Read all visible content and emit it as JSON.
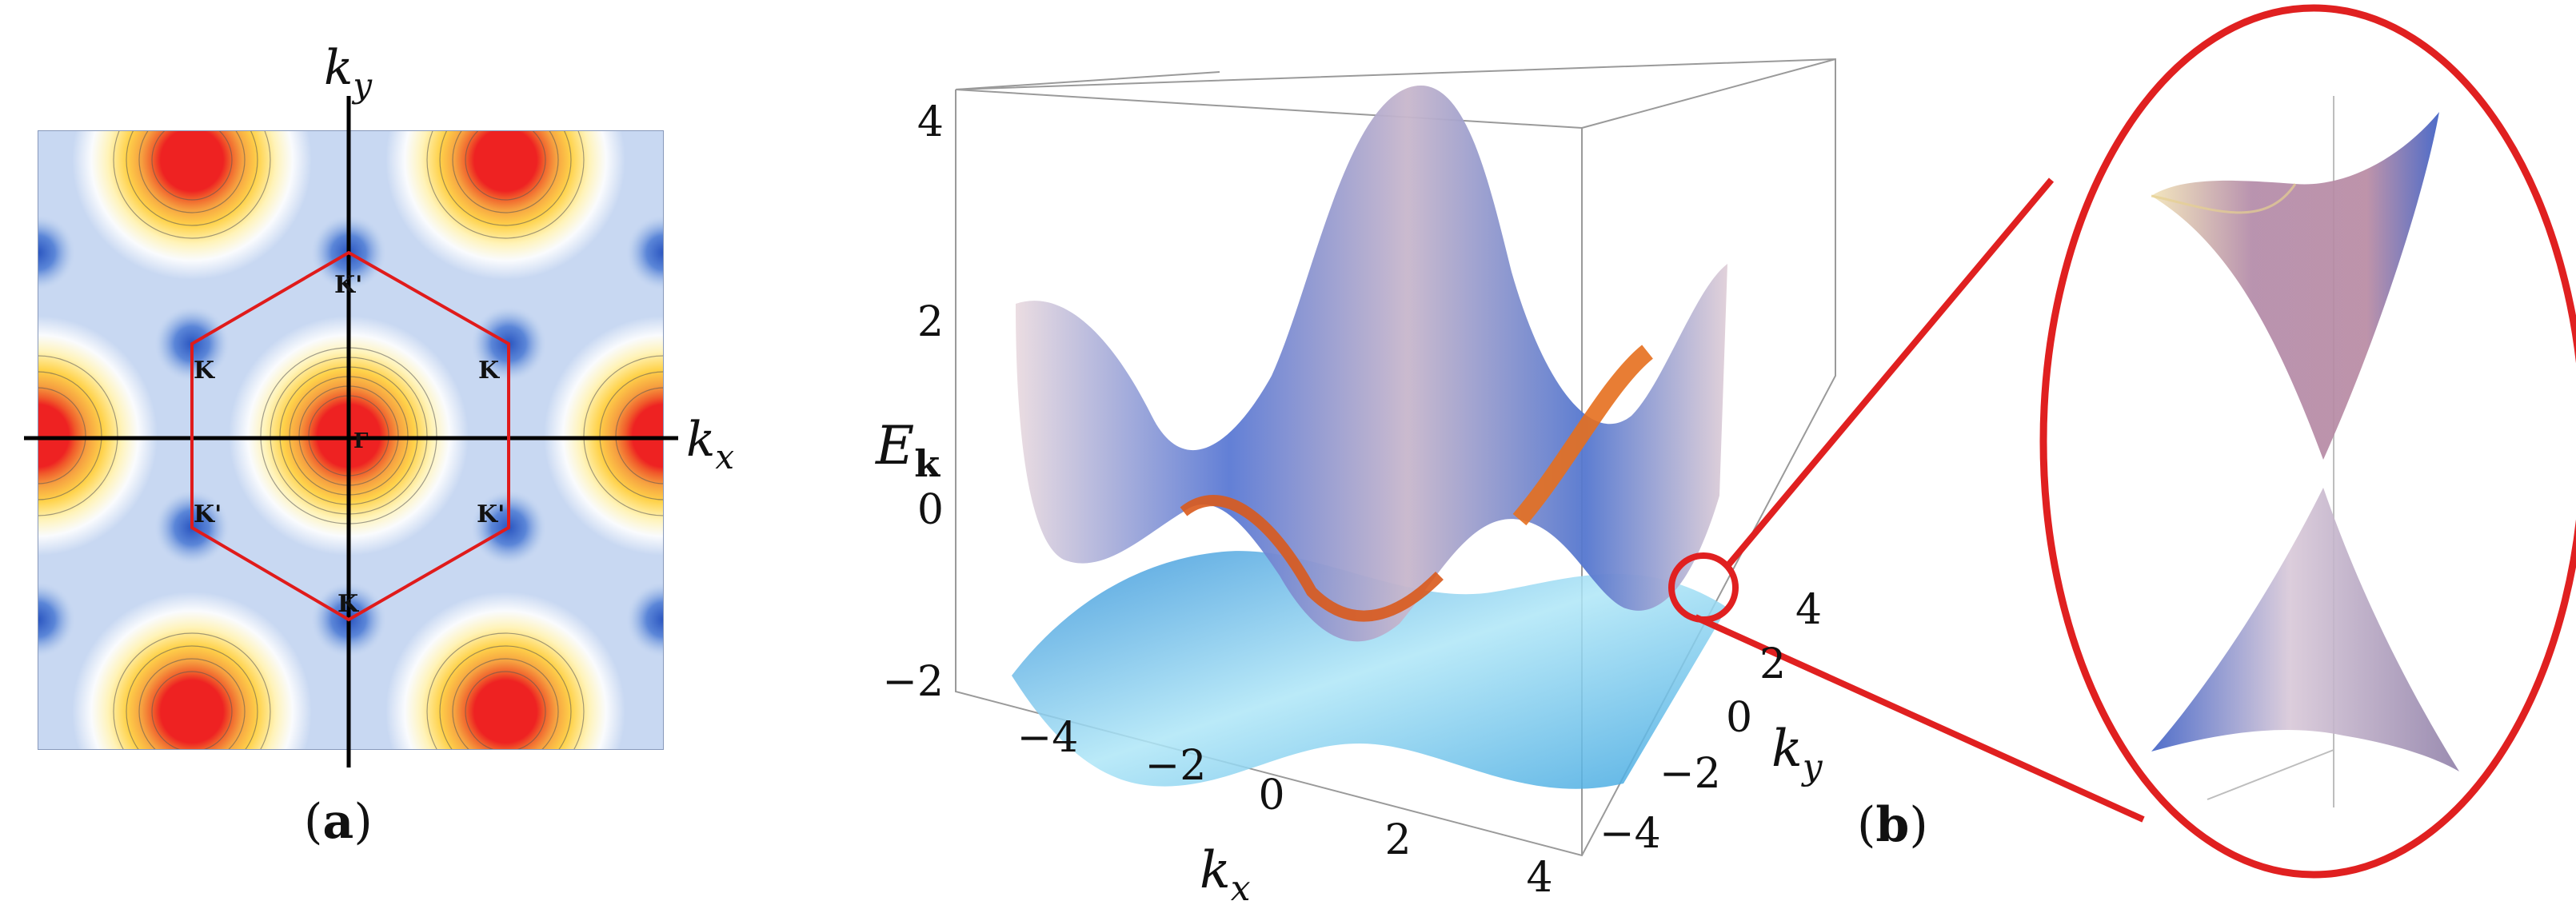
{
  "panel_a": {
    "caption_open": "(",
    "caption_letter": "a",
    "caption_close": ")",
    "axis_ky_base": "k",
    "axis_ky_sub": "y",
    "axis_kx_base": "k",
    "axis_kx_sub": "x",
    "points": [
      {
        "label": "K'",
        "kx": 0.0,
        "ky": 0.7
      },
      {
        "label": "K",
        "kx": -0.5,
        "ky": 0.35
      },
      {
        "label": "K",
        "kx": 0.5,
        "ky": 0.35
      },
      {
        "label": "Γ",
        "kx": 0.02,
        "ky": -0.02
      },
      {
        "label": "K'",
        "kx": -0.5,
        "ky": -0.35
      },
      {
        "label": "K'",
        "kx": 0.5,
        "ky": -0.35
      },
      {
        "label": "K",
        "kx": 0.0,
        "ky": -0.7
      }
    ],
    "colors": {
      "hexagon": "#e01b1b",
      "peak": "#ee2222",
      "mid": "#ffd24a",
      "low": "#3b68c8",
      "base": "#c8d8f2"
    }
  },
  "panel_b": {
    "caption_open": "(",
    "caption_letter": "b",
    "caption_close": ")",
    "energy_label_base": "E",
    "energy_label_sub": "k",
    "kx_label_base": "k",
    "kx_label_sub": "x",
    "ky_label_base": "k",
    "ky_label_sub": "y",
    "energy_ticks": [
      "4",
      "2",
      "0",
      "−2"
    ],
    "kx_ticks": [
      "−4",
      "−2",
      "0",
      "2",
      "4"
    ],
    "ky_ticks": [
      "4",
      "2",
      "0",
      "−2",
      "−4"
    ],
    "colors": {
      "upper_band": "#6f86cf",
      "lower_band": "#59b8e8",
      "edge": "#e46a1c",
      "zoom_circle": "#e02020"
    }
  },
  "chart_data": {
    "type": "surface",
    "energy_range": [
      -2,
      4
    ],
    "kx_range": [
      -4,
      4
    ],
    "ky_range": [
      -4,
      4
    ]
  }
}
